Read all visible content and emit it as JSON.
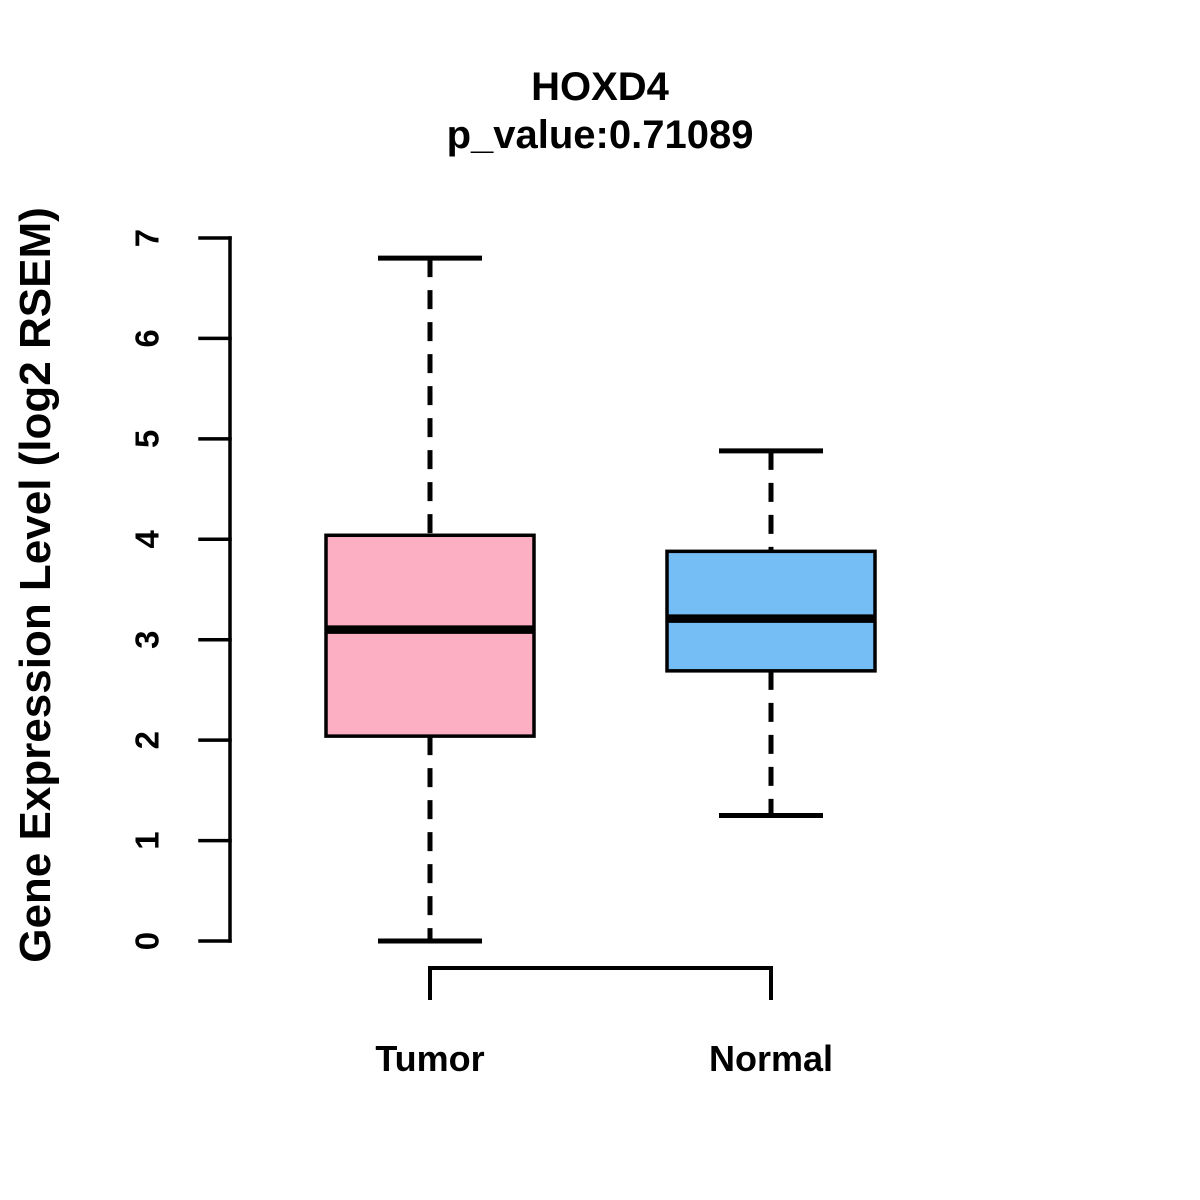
{
  "page": {
    "background": "#FFFFFF"
  },
  "chart_data": {
    "type": "boxplot",
    "title": "HOXD4",
    "subtitle": "p_value:0.71089",
    "xlabel": "",
    "ylabel": "Gene Expression Level (log2 RSEM)",
    "ylim": [
      0,
      7
    ],
    "yticks": [
      0,
      1,
      2,
      3,
      4,
      5,
      6,
      7
    ],
    "grid": false,
    "legend": "none",
    "categories": [
      "Tumor",
      "Normal"
    ],
    "series": [
      {
        "name": "Tumor",
        "whisker_low": 0.0,
        "q1": 2.04,
        "median": 3.1,
        "q3": 4.04,
        "whisker_high": 6.8,
        "outliers": [],
        "fill_color": "#FCAEC2",
        "border_color": "#000000"
      },
      {
        "name": "Normal",
        "whisker_low": 1.25,
        "q1": 2.69,
        "median": 3.21,
        "q3": 3.88,
        "whisker_high": 4.88,
        "outliers": [],
        "fill_color": "#75BDF5",
        "border_color": "#000000"
      }
    ],
    "whisker_style": "dashed",
    "axis_color": "#000000",
    "median_color": "#000000",
    "text_color": "#000000"
  }
}
